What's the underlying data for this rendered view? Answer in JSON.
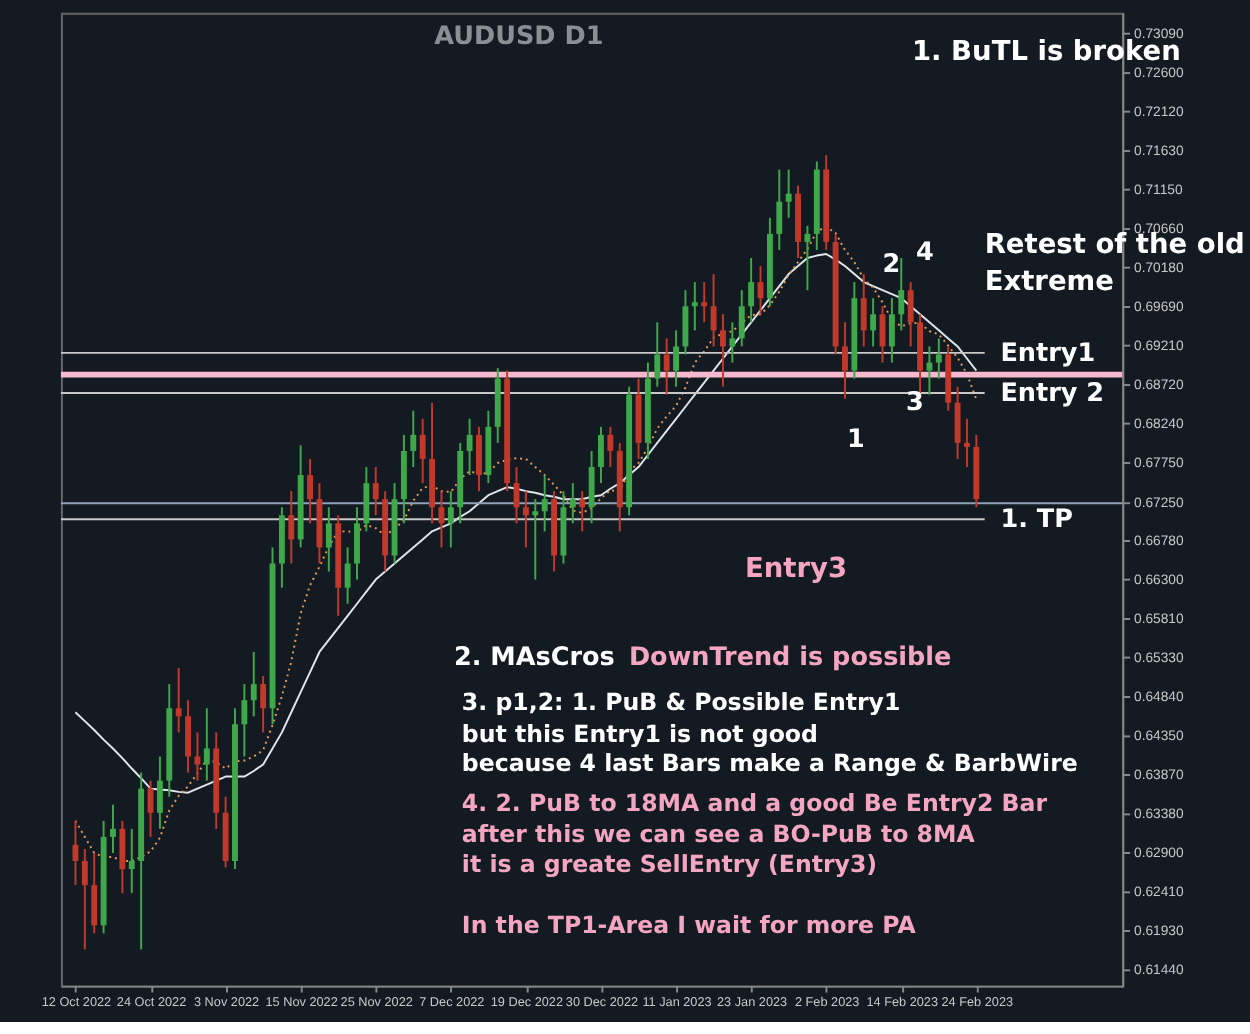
{
  "chart_data": {
    "type": "candlestick",
    "title": "AUDUSD  D1",
    "categories": [
      "12 Oct 2022",
      null,
      null,
      null,
      null,
      null,
      null,
      null,
      "24 Oct 2022",
      null,
      null,
      null,
      null,
      null,
      null,
      null,
      "3 Nov 2022",
      null,
      null,
      null,
      null,
      null,
      null,
      null,
      "15 Nov 2022",
      null,
      null,
      null,
      null,
      null,
      null,
      null,
      "25 Nov 2022",
      null,
      null,
      null,
      null,
      null,
      null,
      null,
      "7 Dec 2022",
      null,
      null,
      null,
      null,
      null,
      null,
      null,
      "19 Dec 2022",
      null,
      null,
      null,
      null,
      null,
      null,
      null,
      "30 Dec 2022",
      null,
      null,
      null,
      null,
      null,
      null,
      null,
      "11 Jan 2023",
      null,
      null,
      null,
      null,
      null,
      null,
      null,
      "23 Jan 2023",
      null,
      null,
      null,
      null,
      null,
      null,
      null,
      "2 Feb 2023",
      null,
      null,
      null,
      null,
      null,
      null,
      null,
      "14 Feb 2023",
      null,
      null,
      null,
      null,
      null,
      null,
      null,
      "24 Feb 2023"
    ],
    "ohlc": [
      [
        0.63,
        0.633,
        0.625,
        0.628
      ],
      [
        0.628,
        0.6295,
        0.617,
        0.625
      ],
      [
        0.625,
        0.629,
        0.619,
        0.62
      ],
      [
        0.62,
        0.633,
        0.619,
        0.631
      ],
      [
        0.631,
        0.635,
        0.629,
        0.632
      ],
      [
        0.632,
        0.633,
        0.624,
        0.627
      ],
      [
        0.627,
        0.632,
        0.624,
        0.628
      ],
      [
        0.628,
        0.639,
        0.617,
        0.637
      ],
      [
        0.637,
        0.638,
        0.631,
        0.634
      ],
      [
        0.634,
        0.641,
        0.632,
        0.638
      ],
      [
        0.638,
        0.65,
        0.636,
        0.647
      ],
      [
        0.647,
        0.652,
        0.644,
        0.646
      ],
      [
        0.646,
        0.648,
        0.639,
        0.641
      ],
      [
        0.641,
        0.644,
        0.638,
        0.64
      ],
      [
        0.64,
        0.647,
        0.638,
        0.642
      ],
      [
        0.642,
        0.644,
        0.632,
        0.634
      ],
      [
        0.634,
        0.636,
        0.6272,
        0.628
      ],
      [
        0.628,
        0.647,
        0.627,
        0.645
      ],
      [
        0.645,
        0.65,
        0.641,
        0.648
      ],
      [
        0.648,
        0.654,
        0.646,
        0.65
      ],
      [
        0.65,
        0.651,
        0.644,
        0.647
      ],
      [
        0.647,
        0.667,
        0.645,
        0.665
      ],
      [
        0.665,
        0.672,
        0.662,
        0.671
      ],
      [
        0.671,
        0.674,
        0.665,
        0.668
      ],
      [
        0.668,
        0.6797,
        0.667,
        0.676
      ],
      [
        0.676,
        0.678,
        0.67,
        0.673
      ],
      [
        0.673,
        0.675,
        0.665,
        0.667
      ],
      [
        0.667,
        0.672,
        0.664,
        0.67
      ],
      [
        0.67,
        0.671,
        0.6585,
        0.662
      ],
      [
        0.662,
        0.667,
        0.66,
        0.665
      ],
      [
        0.665,
        0.672,
        0.663,
        0.67
      ],
      [
        0.67,
        0.677,
        0.669,
        0.675
      ],
      [
        0.675,
        0.677,
        0.671,
        0.673
      ],
      [
        0.673,
        0.674,
        0.664,
        0.666
      ],
      [
        0.666,
        0.675,
        0.665,
        0.673
      ],
      [
        0.673,
        0.681,
        0.67,
        0.679
      ],
      [
        0.679,
        0.684,
        0.677,
        0.681
      ],
      [
        0.681,
        0.683,
        0.675,
        0.678
      ],
      [
        0.678,
        0.685,
        0.67,
        0.672
      ],
      [
        0.672,
        0.674,
        0.667,
        0.67
      ],
      [
        0.67,
        0.674,
        0.667,
        0.672
      ],
      [
        0.672,
        0.68,
        0.67,
        0.679
      ],
      [
        0.679,
        0.683,
        0.676,
        0.681
      ],
      [
        0.681,
        0.682,
        0.674,
        0.676
      ],
      [
        0.676,
        0.684,
        0.675,
        0.682
      ],
      [
        0.682,
        0.6893,
        0.68,
        0.688
      ],
      [
        0.688,
        0.689,
        0.674,
        0.675
      ],
      [
        0.675,
        0.677,
        0.67,
        0.672
      ],
      [
        0.672,
        0.674,
        0.667,
        0.671
      ],
      [
        0.671,
        0.673,
        0.663,
        0.6715
      ],
      [
        0.6715,
        0.676,
        0.669,
        0.673
      ],
      [
        0.673,
        0.674,
        0.664,
        0.666
      ],
      [
        0.666,
        0.674,
        0.665,
        0.672
      ],
      [
        0.672,
        0.675,
        0.67,
        0.673
      ],
      [
        0.673,
        0.674,
        0.669,
        0.672
      ],
      [
        0.672,
        0.679,
        0.67,
        0.677
      ],
      [
        0.677,
        0.682,
        0.675,
        0.681
      ],
      [
        0.681,
        0.682,
        0.677,
        0.679
      ],
      [
        0.679,
        0.68,
        0.669,
        0.672
      ],
      [
        0.672,
        0.687,
        0.671,
        0.686
      ],
      [
        0.686,
        0.688,
        0.678,
        0.68
      ],
      [
        0.68,
        0.69,
        0.678,
        0.688
      ],
      [
        0.688,
        0.695,
        0.687,
        0.691
      ],
      [
        0.691,
        0.693,
        0.686,
        0.689
      ],
      [
        0.689,
        0.694,
        0.687,
        0.692
      ],
      [
        0.692,
        0.699,
        0.691,
        0.697
      ],
      [
        0.697,
        0.7,
        0.694,
        0.6975
      ],
      [
        0.6975,
        0.7,
        0.695,
        0.697
      ],
      [
        0.697,
        0.701,
        0.692,
        0.694
      ],
      [
        0.694,
        0.696,
        0.687,
        0.692
      ],
      [
        0.692,
        0.695,
        0.69,
        0.693
      ],
      [
        0.693,
        0.699,
        0.692,
        0.697
      ],
      [
        0.697,
        0.703,
        0.695,
        0.7
      ],
      [
        0.7,
        0.702,
        0.696,
        0.698
      ],
      [
        0.698,
        0.708,
        0.697,
        0.706
      ],
      [
        0.706,
        0.714,
        0.704,
        0.71
      ],
      [
        0.71,
        0.714,
        0.708,
        0.711
      ],
      [
        0.711,
        0.712,
        0.703,
        0.705
      ],
      [
        0.705,
        0.707,
        0.699,
        0.706
      ],
      [
        0.706,
        0.715,
        0.704,
        0.714
      ],
      [
        0.714,
        0.7158,
        0.704,
        0.705
      ],
      [
        0.705,
        0.706,
        0.691,
        0.692
      ],
      [
        0.692,
        0.695,
        0.6855,
        0.689
      ],
      [
        0.689,
        0.7,
        0.688,
        0.698
      ],
      [
        0.698,
        0.701,
        0.692,
        0.694
      ],
      [
        0.694,
        0.698,
        0.692,
        0.696
      ],
      [
        0.696,
        0.697,
        0.69,
        0.692
      ],
      [
        0.692,
        0.698,
        0.69,
        0.696
      ],
      [
        0.696,
        0.703,
        0.694,
        0.699
      ],
      [
        0.699,
        0.7,
        0.692,
        0.695
      ],
      [
        0.695,
        0.696,
        0.686,
        0.689
      ],
      [
        0.689,
        0.692,
        0.686,
        0.69
      ],
      [
        0.69,
        0.693,
        0.688,
        0.691
      ],
      [
        0.691,
        0.692,
        0.684,
        0.685
      ],
      [
        0.685,
        0.687,
        0.678,
        0.68
      ],
      [
        0.68,
        0.683,
        0.677,
        0.6795
      ],
      [
        0.6795,
        0.681,
        0.672,
        0.673
      ]
    ],
    "colors": [
      "#c0392b",
      "#c0392b",
      "#c0392b",
      "#3ea84a",
      "#3ea84a",
      "#c0392b",
      "#3ea84a",
      "#3ea84a",
      "#c0392b",
      "#3ea84a",
      "#3ea84a",
      "#c0392b",
      "#c0392b",
      "#c0392b",
      "#3ea84a",
      "#c0392b",
      "#c0392b",
      "#3ea84a",
      "#3ea84a",
      "#3ea84a",
      "#c0392b",
      "#3ea84a",
      "#3ea84a",
      "#c0392b",
      "#3ea84a",
      "#c0392b",
      "#c0392b",
      "#3ea84a",
      "#c0392b",
      "#3ea84a",
      "#3ea84a",
      "#3ea84a",
      "#c0392b",
      "#c0392b",
      "#3ea84a",
      "#3ea84a",
      "#3ea84a",
      "#c0392b",
      "#c0392b",
      "#c0392b",
      "#3ea84a",
      "#3ea84a",
      "#3ea84a",
      "#c0392b",
      "#3ea84a",
      "#3ea84a",
      "#c0392b",
      "#c0392b",
      "#c0392b",
      "#3ea84a",
      "#3ea84a",
      "#c0392b",
      "#3ea84a",
      "#3ea84a",
      "#c0392b",
      "#3ea84a",
      "#3ea84a",
      "#c0392b",
      "#c0392b",
      "#3ea84a",
      "#c0392b",
      "#3ea84a",
      "#3ea84a",
      "#c0392b",
      "#3ea84a",
      "#3ea84a",
      "#3ea84a",
      "#c0392b",
      "#c0392b",
      "#c0392b",
      "#3ea84a",
      "#3ea84a",
      "#3ea84a",
      "#c0392b",
      "#3ea84a",
      "#3ea84a",
      "#3ea84a",
      "#c0392b",
      "#3ea84a",
      "#3ea84a",
      "#c0392b",
      "#c0392b",
      "#c0392b",
      "#3ea84a",
      "#c0392b",
      "#3ea84a",
      "#c0392b",
      "#3ea84a",
      "#3ea84a",
      "#c0392b",
      "#c0392b",
      "#3ea84a",
      "#3ea84a",
      "#c0392b",
      "#c0392b",
      "#c0392b",
      "#c0392b"
    ],
    "series": [
      {
        "type": "line",
        "color": "#dfe6ea",
        "line_style": "solid",
        "values": [
          0.6465,
          0.6454,
          0.6443,
          0.6431,
          0.642,
          0.6408,
          0.6395,
          0.6383,
          0.637,
          0.6369,
          0.6368,
          0.6366,
          0.6365,
          0.637,
          0.6375,
          0.638,
          0.6385,
          0.6385,
          0.6385,
          0.6392,
          0.64,
          0.642,
          0.644,
          0.6465,
          0.649,
          0.6515,
          0.654,
          0.6555,
          0.657,
          0.6585,
          0.66,
          0.6615,
          0.663,
          0.664,
          0.665,
          0.666,
          0.667,
          0.668,
          0.669,
          0.6695,
          0.67,
          0.6708,
          0.6715,
          0.6725,
          0.6735,
          0.674,
          0.6745,
          0.6743,
          0.674,
          0.6738,
          0.6735,
          0.6733,
          0.673,
          0.673,
          0.673,
          0.6733,
          0.6735,
          0.6743,
          0.675,
          0.676,
          0.677,
          0.6785,
          0.68,
          0.6815,
          0.683,
          0.6845,
          0.686,
          0.6875,
          0.689,
          0.6905,
          0.692,
          0.6935,
          0.695,
          0.6965,
          0.698,
          0.6995,
          0.701,
          0.702,
          0.703,
          0.7033,
          0.7035,
          0.7028,
          0.702,
          0.701,
          0.7,
          0.6995,
          0.699,
          0.6985,
          0.698,
          0.697,
          0.696,
          0.695,
          0.694,
          0.693,
          0.692,
          0.6905,
          0.689
        ]
      },
      {
        "type": "line",
        "color": "#e39a5a",
        "line_style": "dotted",
        "values": [
          0.633,
          0.631,
          0.629,
          0.6285,
          0.6285,
          0.628,
          0.628,
          0.6285,
          0.6292,
          0.6309,
          0.6343,
          0.6361,
          0.6373,
          0.6389,
          0.6406,
          0.6403,
          0.6395,
          0.6404,
          0.6405,
          0.641,
          0.6418,
          0.6449,
          0.6485,
          0.6528,
          0.6588,
          0.6623,
          0.6646,
          0.6671,
          0.669,
          0.669,
          0.6689,
          0.6698,
          0.6694,
          0.6685,
          0.6693,
          0.6704,
          0.6728,
          0.6744,
          0.6747,
          0.674,
          0.6739,
          0.6755,
          0.6765,
          0.6761,
          0.6763,
          0.6775,
          0.6779,
          0.6781,
          0.678,
          0.677,
          0.676,
          0.6748,
          0.6735,
          0.6716,
          0.6713,
          0.6719,
          0.6731,
          0.6741,
          0.674,
          0.6765,
          0.6775,
          0.6794,
          0.6818,
          0.6833,
          0.6846,
          0.6869,
          0.69,
          0.6914,
          0.6931,
          0.6936,
          0.6939,
          0.6949,
          0.6959,
          0.696,
          0.6971,
          0.6988,
          0.7009,
          0.7025,
          0.7041,
          0.7063,
          0.7069,
          0.7061,
          0.704,
          0.7025,
          0.7004,
          0.6993,
          0.6975,
          0.6953,
          0.6945,
          0.6949,
          0.6949,
          0.6939,
          0.6935,
          0.6921,
          0.6906,
          0.6886,
          0.6854
        ]
      }
    ],
    "ylim": [
      0.6125,
      0.7335
    ],
    "yticks": [
      {
        "value": 0.7309,
        "label": "0.73090"
      },
      {
        "value": 0.726,
        "label": "0.72600"
      },
      {
        "value": 0.7212,
        "label": "0.72120"
      },
      {
        "value": 0.7163,
        "label": "0.71630"
      },
      {
        "value": 0.7115,
        "label": "0.71150"
      },
      {
        "value": 0.7066,
        "label": "0.70660"
      },
      {
        "value": 0.7018,
        "label": "0.70180"
      },
      {
        "value": 0.6969,
        "label": "0.69690"
      },
      {
        "value": 0.6921,
        "label": "0.69210"
      },
      {
        "value": 0.6872,
        "label": "0.68720"
      },
      {
        "value": 0.6824,
        "label": "0.68240"
      },
      {
        "value": 0.6775,
        "label": "0.67750"
      },
      {
        "value": 0.6725,
        "label": "0.67250"
      },
      {
        "value": 0.6678,
        "label": "0.66780"
      },
      {
        "value": 0.663,
        "label": "0.66300"
      },
      {
        "value": 0.6581,
        "label": "0.65810"
      },
      {
        "value": 0.6533,
        "label": "0.65330"
      },
      {
        "value": 0.6484,
        "label": "0.64840"
      },
      {
        "value": 0.6435,
        "label": "0.64350"
      },
      {
        "value": 0.6387,
        "label": "0.63870"
      },
      {
        "value": 0.6338,
        "label": "0.63380"
      },
      {
        "value": 0.629,
        "label": "0.62900"
      },
      {
        "value": 0.6241,
        "label": "0.62410"
      },
      {
        "value": 0.6193,
        "label": "0.61930"
      },
      {
        "value": 0.6144,
        "label": "0.61440"
      }
    ],
    "ref_lines": [
      {
        "axis": "y",
        "value": 0.6725,
        "label": null,
        "color": "#8fa3b8"
      },
      {
        "axis": "y",
        "value": 0.6885,
        "label": null,
        "color": "#f5b8cc"
      },
      {
        "axis": "y",
        "value": 0.6912,
        "label": "Entry1",
        "color": "#c8c8c8"
      },
      {
        "axis": "y",
        "value": 0.6862,
        "label": "Entry 2",
        "color": "#c8c8c8"
      },
      {
        "axis": "y",
        "value": 0.6705,
        "label": "1. TP",
        "color": "#c8c8c8"
      }
    ],
    "annotations": [
      "1. BuTL is broken",
      "Retest of the old",
      "Extreme",
      "Entry3",
      "2. MAsCros",
      "DownTrend is possible",
      "3. p1,2: 1. PuB & Possible Entry1",
      "but this Entry1 is not good",
      "because 4 last Bars make a Range & BarbWire",
      "4. 2. PuB to 18MA and a good Be Entry2 Bar",
      "after this we can see a BO-PuB to 8MA",
      "it is a greate SellEntry (Entry3)",
      "In the TP1-Area I wait for more PA",
      "1",
      "2",
      "3",
      "4"
    ],
    "grid": false
  }
}
